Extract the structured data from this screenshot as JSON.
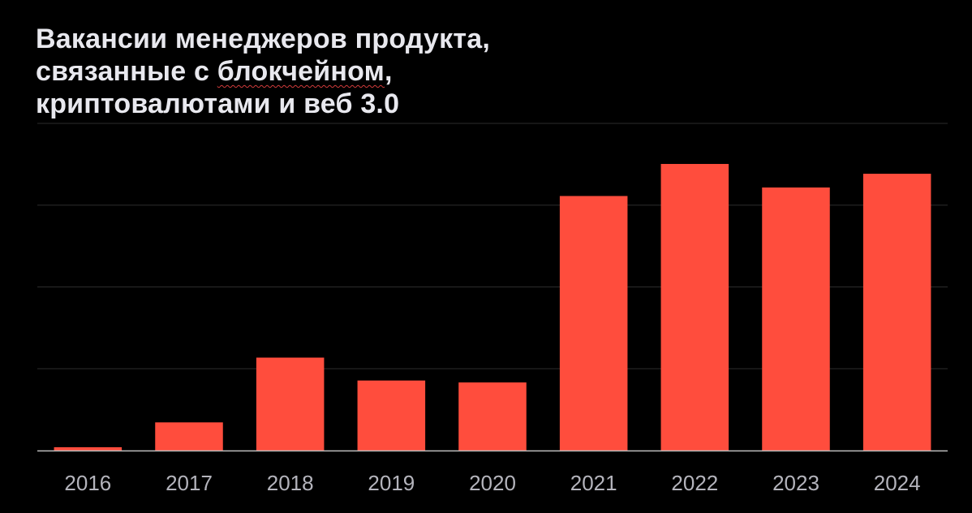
{
  "title_lines": [
    {
      "before": "Вакансии менеджеров продукта,",
      "marked": "",
      "after": ""
    },
    {
      "before": "связанные с ",
      "marked": "блокчейном",
      "after": ","
    },
    {
      "before": "криптовалютами и веб 3.0",
      "marked": "",
      "after": ""
    }
  ],
  "colors": {
    "background": "#000000",
    "bar": "#ff4d3d",
    "grid": "#2c2c2c",
    "axis": "#bdbdbd",
    "text": "#e8e8ee",
    "tick": "#b4b4bc"
  },
  "chart_data": {
    "type": "bar",
    "title": "Вакансии менеджеров продукта, связанные с блокчейном, криптовалютами и веб 3.0",
    "categories": [
      "2016",
      "2017",
      "2018",
      "2019",
      "2020",
      "2021",
      "2022",
      "2023",
      "2024"
    ],
    "values": [
      0.5,
      4.3,
      14.2,
      10.7,
      10.4,
      38.9,
      43.8,
      40.2,
      42.3
    ],
    "xlabel": "",
    "ylabel": "",
    "ylim": [
      0,
      50
    ],
    "y_ticks_labeled": false,
    "grid": true,
    "legend": "none"
  }
}
